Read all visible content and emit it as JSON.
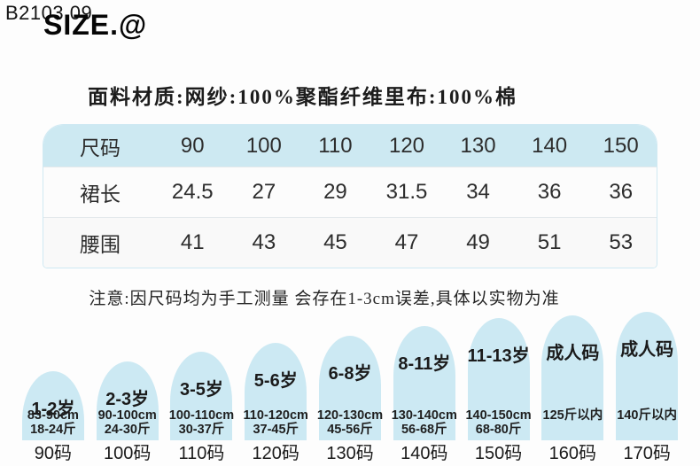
{
  "page": {
    "background": "#fdfdfd",
    "accent_blue": "#cce9f3",
    "table_header_blue": "#cde9f2"
  },
  "header": {
    "watermark": "B2103 09",
    "title": "SIZE.@"
  },
  "fabric_note": "面料材质:网纱:100%聚酯纤维里布:100%棉",
  "size_table": {
    "rows": [
      {
        "label": "尺码",
        "values": [
          "90",
          "100",
          "110",
          "120",
          "130",
          "140",
          "150"
        ]
      },
      {
        "label": "裙长",
        "values": [
          "24.5",
          "27",
          "29",
          "31.5",
          "34",
          "36",
          "36"
        ]
      },
      {
        "label": "腰围",
        "values": [
          "41",
          "43",
          "45",
          "47",
          "49",
          "51",
          "53"
        ]
      }
    ]
  },
  "measure_note": "注意:因尺码均为手工测量 会存在1-3cm误差,具体以实物为准",
  "age_guide": [
    {
      "age": "1-2岁",
      "specs": [
        "83-90cm",
        "18-24斤"
      ],
      "size_code": "90码",
      "arch_height": 78
    },
    {
      "age": "2-3岁",
      "specs": [
        "90-100cm",
        "24-30斤"
      ],
      "size_code": "100码",
      "arch_height": 89
    },
    {
      "age": "3-5岁",
      "specs": [
        "100-110cm",
        "30-37斤"
      ],
      "size_code": "110码",
      "arch_height": 100
    },
    {
      "age": "5-6岁",
      "specs": [
        "110-120cm",
        "37-45斤"
      ],
      "size_code": "120码",
      "arch_height": 110
    },
    {
      "age": "6-8岁",
      "specs": [
        "120-130cm",
        "45-56斤"
      ],
      "size_code": "130码",
      "arch_height": 118
    },
    {
      "age": "8-11岁",
      "specs": [
        "130-140cm",
        "56-68斤"
      ],
      "size_code": "140码",
      "arch_height": 129
    },
    {
      "age": "11-13岁",
      "specs": [
        "140-150cm",
        "68-80斤"
      ],
      "size_code": "150码",
      "arch_height": 138
    },
    {
      "age": "成人码",
      "specs": [
        "125斤以内"
      ],
      "size_code": "160码",
      "arch_height": 141
    },
    {
      "age": "成人码",
      "specs": [
        "140斤以内"
      ],
      "size_code": "170码",
      "arch_height": 145
    }
  ]
}
